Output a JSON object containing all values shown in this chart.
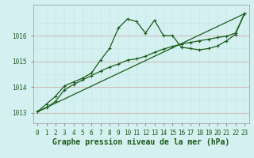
{
  "title": "Graphe pression niveau de la mer (hPa)",
  "bg_color": "#d4f0f0",
  "grid_color_major": "#c8e8e8",
  "grid_color_minor": "#e0f4f4",
  "line_color": "#1a5c1a",
  "x_ticks": [
    0,
    1,
    2,
    3,
    4,
    5,
    6,
    7,
    8,
    9,
    10,
    11,
    12,
    13,
    14,
    15,
    16,
    17,
    18,
    19,
    20,
    21,
    22,
    23
  ],
  "ylim": [
    1012.6,
    1017.2
  ],
  "yticks": [
    1013,
    1014,
    1015,
    1016
  ],
  "series_jagged": {
    "x": [
      0,
      1,
      2,
      3,
      4,
      5,
      6,
      7,
      8,
      9,
      10,
      11,
      12,
      13,
      14,
      15,
      16,
      17,
      18,
      19,
      20,
      21,
      22,
      23
    ],
    "y": [
      1013.05,
      1013.35,
      1013.65,
      1014.05,
      1014.2,
      1014.35,
      1014.55,
      1015.05,
      1015.5,
      1016.3,
      1016.65,
      1016.55,
      1016.1,
      1016.6,
      1016.0,
      1016.0,
      1015.55,
      1015.5,
      1015.45,
      1015.5,
      1015.6,
      1015.8,
      1016.05,
      1016.85
    ]
  },
  "series_smooth": {
    "x": [
      0,
      1,
      2,
      3,
      4,
      5,
      6,
      7,
      8,
      9,
      10,
      11,
      12,
      13,
      14,
      15,
      16,
      17,
      18,
      19,
      20,
      21,
      22,
      23
    ],
    "y": [
      1013.05,
      1013.2,
      1013.45,
      1013.9,
      1014.1,
      1014.28,
      1014.45,
      1014.62,
      1014.78,
      1014.9,
      1015.05,
      1015.1,
      1015.2,
      1015.35,
      1015.48,
      1015.58,
      1015.68,
      1015.74,
      1015.8,
      1015.86,
      1015.93,
      1015.98,
      1016.1,
      1016.85
    ]
  },
  "series_linear": {
    "x": [
      0,
      23
    ],
    "y": [
      1013.05,
      1016.85
    ]
  },
  "marker_size": 3.5,
  "linewidth": 0.9,
  "title_fontsize": 7,
  "tick_fontsize": 5.5
}
